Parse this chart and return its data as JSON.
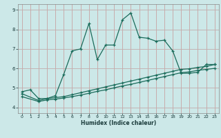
{
  "xlabel": "Humidex (Indice chaleur)",
  "bg_color": "#cce8e8",
  "line_color": "#1a6b5a",
  "grid_color": "#b5d5d5",
  "grid_color2": "#c8a0a0",
  "xlim": [
    -0.5,
    23.5
  ],
  "ylim": [
    3.7,
    9.3
  ],
  "xticks": [
    0,
    1,
    2,
    3,
    4,
    5,
    6,
    7,
    8,
    9,
    10,
    11,
    12,
    13,
    14,
    15,
    16,
    17,
    18,
    19,
    20,
    21,
    22,
    23
  ],
  "yticks": [
    4,
    5,
    6,
    7,
    8,
    9
  ],
  "line1_x": [
    0,
    1,
    2,
    3,
    4,
    5,
    6,
    7,
    8,
    9,
    10,
    11,
    12,
    13,
    14,
    15,
    16,
    17,
    18,
    19,
    20,
    21,
    22,
    23
  ],
  "line1_y": [
    4.8,
    4.9,
    4.45,
    4.45,
    4.6,
    5.7,
    6.9,
    7.0,
    8.3,
    6.45,
    7.2,
    7.2,
    8.5,
    8.85,
    7.6,
    7.55,
    7.4,
    7.45,
    6.9,
    5.75,
    5.75,
    5.8,
    6.2,
    6.2
  ],
  "line2_x": [
    0,
    2,
    3,
    4,
    5,
    6,
    7,
    8,
    9,
    10,
    11,
    12,
    13,
    14,
    15,
    16,
    17,
    18,
    19,
    20,
    21,
    22,
    23
  ],
  "line2_y": [
    4.7,
    4.35,
    4.45,
    4.5,
    4.55,
    4.65,
    4.75,
    4.85,
    4.95,
    5.05,
    5.15,
    5.25,
    5.35,
    5.45,
    5.55,
    5.65,
    5.75,
    5.85,
    5.95,
    5.98,
    6.05,
    6.1,
    6.2
  ],
  "line3_x": [
    0,
    2,
    3,
    4,
    5,
    6,
    7,
    8,
    9,
    10,
    11,
    12,
    13,
    14,
    15,
    16,
    17,
    18,
    19,
    20,
    21,
    22,
    23
  ],
  "line3_y": [
    4.55,
    4.3,
    4.38,
    4.42,
    4.48,
    4.55,
    4.63,
    4.72,
    4.82,
    4.9,
    5.0,
    5.1,
    5.18,
    5.28,
    5.38,
    5.48,
    5.58,
    5.68,
    5.78,
    5.82,
    5.9,
    5.95,
    6.0
  ]
}
